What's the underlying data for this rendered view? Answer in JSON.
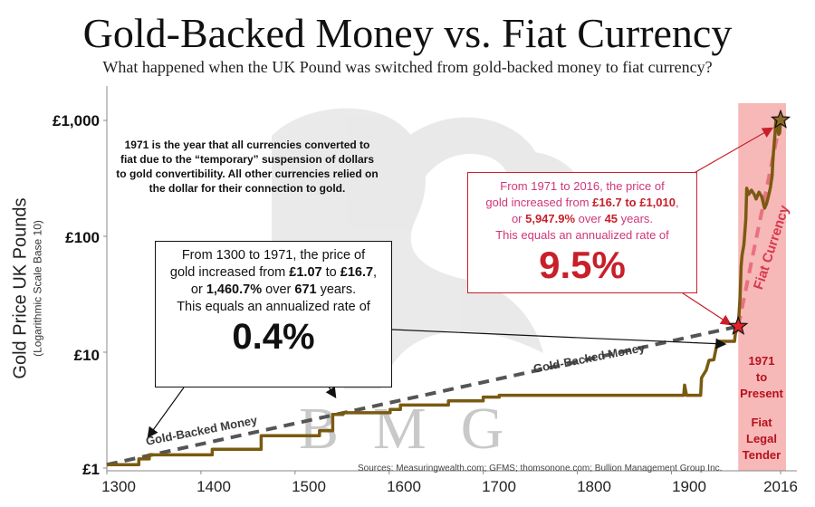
{
  "chart_data": {
    "type": "line",
    "title": "Gold-Backed Money vs. Fiat Currency",
    "subtitle": "What happened when the UK Pound was switched from gold-backed money to fiat currency?",
    "ylabel": "Gold Price UK Pounds",
    "ylabel_sub": "(Logarithmic Scale Base 10)",
    "yscale": "log10",
    "ylim": [
      1,
      1600
    ],
    "xlim": [
      1300,
      2016
    ],
    "y_ticks": [
      {
        "value": 1,
        "label": "£1"
      },
      {
        "value": 10,
        "label": "£10"
      },
      {
        "value": 100,
        "label": "£100"
      },
      {
        "value": 1000,
        "label": "£1,000"
      }
    ],
    "x_ticks": [
      {
        "value": 1300,
        "label": "1300"
      },
      {
        "value": 1400,
        "label": "1400"
      },
      {
        "value": 1500,
        "label": "1500"
      },
      {
        "value": 1600,
        "label": "1600"
      },
      {
        "value": 1700,
        "label": "1700"
      },
      {
        "value": 1800,
        "label": "1800"
      },
      {
        "value": 1900,
        "label": "1900"
      },
      {
        "value": 2016,
        "label": "2016"
      }
    ],
    "series": [
      {
        "name": "Gold Price",
        "color": "#7a5a10",
        "points": [
          [
            1300,
            1.07
          ],
          [
            1334,
            1.07
          ],
          [
            1334,
            1.2
          ],
          [
            1345,
            1.2
          ],
          [
            1345,
            1.3
          ],
          [
            1412,
            1.3
          ],
          [
            1412,
            1.45
          ],
          [
            1464,
            1.45
          ],
          [
            1464,
            1.9
          ],
          [
            1526,
            1.9
          ],
          [
            1526,
            2.1
          ],
          [
            1540,
            2.1
          ],
          [
            1540,
            2.9
          ],
          [
            1551,
            2.9
          ],
          [
            1551,
            3.0
          ],
          [
            1601,
            3.0
          ],
          [
            1601,
            3.2
          ],
          [
            1612,
            3.2
          ],
          [
            1612,
            3.5
          ],
          [
            1663,
            3.5
          ],
          [
            1663,
            3.8
          ],
          [
            1700,
            3.8
          ],
          [
            1700,
            4.1
          ],
          [
            1717,
            4.1
          ],
          [
            1717,
            4.25
          ],
          [
            1797,
            4.25
          ],
          [
            1815,
            4.25
          ],
          [
            1913,
            4.25
          ],
          [
            1914,
            5.2
          ],
          [
            1916,
            4.25
          ],
          [
            1931,
            4.25
          ],
          [
            1932,
            6.0
          ],
          [
            1937,
            7.0
          ],
          [
            1940,
            8.5
          ],
          [
            1945,
            8.6
          ],
          [
            1949,
            12.4
          ],
          [
            1967,
            12.4
          ],
          [
            1968,
            14.5
          ],
          [
            1971,
            16.7
          ],
          [
            1973,
            30
          ],
          [
            1974,
            55
          ],
          [
            1975,
            68
          ],
          [
            1977,
            85
          ],
          [
            1979,
            140
          ],
          [
            1980,
            260
          ],
          [
            1982,
            230
          ],
          [
            1985,
            250
          ],
          [
            1988,
            230
          ],
          [
            1990,
            210
          ],
          [
            1993,
            240
          ],
          [
            1996,
            220
          ],
          [
            1999,
            175
          ],
          [
            2001,
            190
          ],
          [
            2003,
            220
          ],
          [
            2005,
            260
          ],
          [
            2007,
            330
          ],
          [
            2008,
            480
          ],
          [
            2010,
            760
          ],
          [
            2011,
            1000
          ],
          [
            2012,
            1050
          ],
          [
            2013,
            820
          ],
          [
            2014,
            760
          ],
          [
            2015,
            780
          ],
          [
            2016,
            1010
          ]
        ]
      },
      {
        "name": "Gold-Backed Money trend",
        "style": "dashed",
        "color": "#555555",
        "points": [
          [
            1300,
            1.07
          ],
          [
            1971,
            16.7
          ]
        ]
      },
      {
        "name": "Fiat Currency trend",
        "style": "dashed",
        "color": "#e8717d",
        "points": [
          [
            1971,
            16.7
          ],
          [
            2016,
            1010
          ]
        ]
      }
    ],
    "markers": [
      {
        "year": 1971,
        "value": 16.7,
        "shape": "star",
        "color": "#e3222b"
      },
      {
        "year": 2016,
        "value": 1010,
        "shape": "star",
        "color": "#8a6a2a"
      }
    ],
    "shaded_region": {
      "from": 1971,
      "to": 2016,
      "color": "#f7b8b8"
    },
    "labels": {
      "gold_backed_1": "Gold-Backed Money",
      "gold_backed_2": "Gold-Backed Money",
      "fiat_currency": "Fiat Currency",
      "band_1": "1971",
      "band_2": "to",
      "band_3": "Present",
      "band_4": "Fiat",
      "band_5": "Legal",
      "band_6": "Tender",
      "watermark": "BMG",
      "source": "Sources: Measuringwealth.com; GFMS; thomsonone.com; Bullion Management Group Inc."
    },
    "note_1971": "1971 is the year that all currencies converted to fiat due to the “temporary” suspension of dollars to gold convertibility.  All other currencies relied on the dollar for their connection to gold.",
    "box_left": {
      "l1": "From 1300 to 1971, the price of",
      "l2a": "gold increased from ",
      "v1": "£1.07",
      "l2b": " to ",
      "v2": "£16.7",
      "l2c": ",",
      "l3a": "or ",
      "pct": "1,460.7%",
      "l3b": " over ",
      "yrs": "671",
      "l3c": " years.",
      "l4": "This equals an annualized rate of",
      "rate": "0.4%"
    },
    "box_right": {
      "l1": "From 1971 to 2016, the price of",
      "l2a": "gold increased from ",
      "v1": "£16.7",
      "l2b": " to ",
      "v2": "£1,010",
      "l2c": ",",
      "l3a": "or ",
      "pct": "5,947.9%",
      "l3b": " over ",
      "yrs": "45",
      "l3c": " years.",
      "l4": "This equals an annualized rate of",
      "rate": "9.5%"
    }
  }
}
